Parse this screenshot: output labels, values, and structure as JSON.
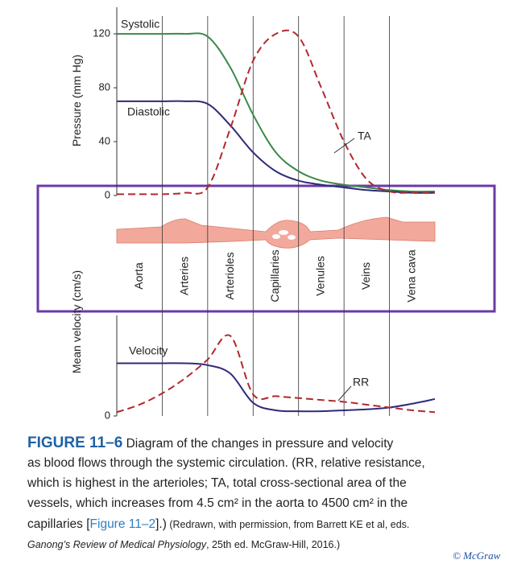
{
  "chart_data": [
    {
      "type": "line",
      "y_label": "Pressure (mm Hg)",
      "categories": [
        null,
        "Aorta",
        null,
        "Arteries",
        null,
        "Arterioles",
        null,
        "Capillaries",
        null,
        "Venules",
        null,
        "Veins",
        null,
        "Vena cava",
        null
      ],
      "ylim": [
        0,
        135
      ],
      "yticks": [
        0,
        40,
        80,
        120
      ],
      "series": [
        {
          "name": "Systolic",
          "color": "#3b8a47",
          "dashed": false,
          "values": [
            120,
            120,
            120,
            120,
            118,
            95,
            60,
            32,
            18,
            11,
            8,
            6,
            4,
            3,
            3
          ]
        },
        {
          "name": "Diastolic",
          "color": "#2f2a78",
          "dashed": false,
          "values": [
            70,
            70,
            70,
            70,
            68,
            52,
            32,
            18,
            11,
            8,
            6,
            4,
            3,
            2,
            2
          ]
        },
        {
          "name": "TA",
          "color": "#b3282d",
          "dashed": true,
          "values": [
            1,
            1,
            1,
            2,
            6,
            50,
            100,
            120,
            118,
            80,
            40,
            12,
            3,
            2,
            2
          ]
        }
      ]
    },
    {
      "type": "line",
      "y_label": "Mean velocity (cm/s)",
      "ylim": [
        0,
        100
      ],
      "yticks": [
        0
      ],
      "series": [
        {
          "name": "Velocity",
          "color": "#2f2a78",
          "dashed": false,
          "values": [
            56,
            56,
            56,
            56,
            54,
            45,
            14,
            6,
            5,
            5,
            6,
            7,
            9,
            13,
            18
          ]
        },
        {
          "name": "RR",
          "color": "#b3282d",
          "dashed": true,
          "values": [
            4,
            12,
            24,
            40,
            60,
            85,
            23,
            21,
            19,
            17,
            15,
            12,
            9,
            6,
            4
          ]
        }
      ]
    }
  ],
  "caption": {
    "lines": [
      [
        "FIGURE 11–6",
        " Diagram of the changes in pressure and velocity"
      ],
      [
        "as blood flows through the systemic circulation. (RR, relative resistance,"
      ],
      [
        "which is highest in the arterioles; TA, total cross-sectional area of the"
      ],
      [
        "vessels, which increases from 4.5 cm² in the aorta to 4500 cm² in the"
      ],
      [
        "capillaries [",
        "Figure 11–2",
        "].)",
        " (Redrawn, with permission, from Barrett KE et al, eds."
      ],
      [
        "Ganong’s Review of Medical Physiology",
        ", 25th ed. McGraw-Hill, 2016.)"
      ]
    ]
  },
  "copyright": "© McGraw"
}
